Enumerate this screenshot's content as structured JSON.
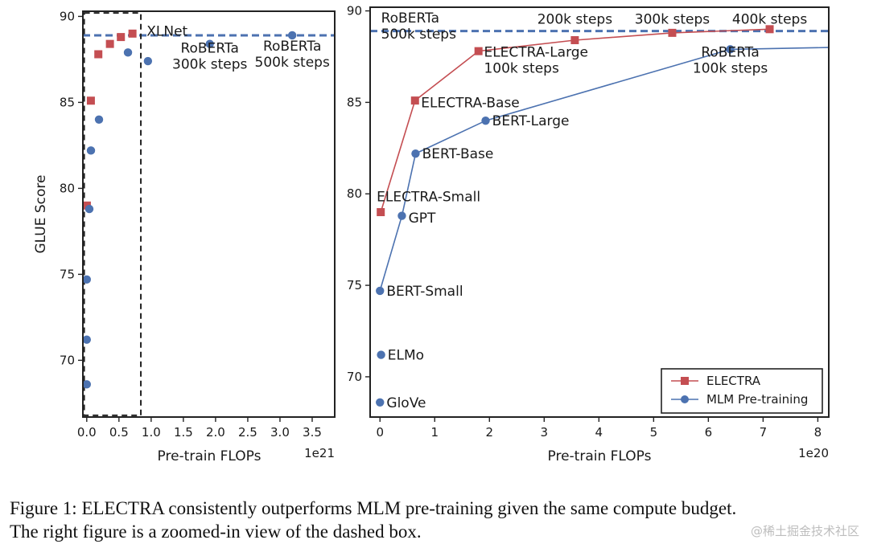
{
  "chart_data": [
    {
      "type": "scatter",
      "xlabel": "Pre-train FLOPs",
      "ylabel": "GLUE Score",
      "x_scale_label": "1e21",
      "xlim": [
        -0.06,
        3.85
      ],
      "ylim": [
        66.7,
        90.3
      ],
      "xticks": [
        "0.0",
        "0.5",
        "1.0",
        "1.5",
        "2.0",
        "2.5",
        "3.0",
        "3.5"
      ],
      "xtick_values": [
        0,
        0.5,
        1,
        1.5,
        2,
        2.5,
        3,
        3.5
      ],
      "yticks": [
        "70",
        "75",
        "80",
        "85",
        "90"
      ],
      "ytick_values": [
        70,
        75,
        80,
        85,
        90
      ],
      "reference_line": {
        "y": 88.9,
        "style": "dashed",
        "color": "#4C72B0"
      },
      "dashed_box": {
        "x": [
          -0.04,
          0.84
        ],
        "y": [
          66.8,
          90.2
        ]
      },
      "series": [
        {
          "marker": "square",
          "color": "#C44E52",
          "points": [
            [
              0.0014,
              79.0
            ],
            [
              0.064,
              85.1
            ],
            [
              0.18,
              87.8
            ],
            [
              0.36,
              88.4
            ],
            [
              0.53,
              88.8
            ],
            [
              0.71,
              89.0
            ]
          ]
        },
        {
          "marker": "circle",
          "color": "#4C72B0",
          "points": [
            [
              0.0,
              68.6
            ],
            [
              0.0,
              71.2
            ],
            [
              0.0,
              74.7
            ],
            [
              0.04,
              78.8
            ],
            [
              0.065,
              82.2
            ],
            [
              0.19,
              84.0
            ],
            [
              0.64,
              87.9
            ],
            [
              0.95,
              87.4
            ],
            [
              1.91,
              88.4
            ],
            [
              3.19,
              88.9
            ]
          ]
        }
      ],
      "annotations": [
        {
          "text": [
            "XLNet"
          ],
          "x": 0.93,
          "y": 88.6
        },
        {
          "text": [
            "RoBERTa",
            "300k steps"
          ],
          "x": 1.91,
          "y": 87.9
        },
        {
          "text": [
            "RoBERTa",
            "500k steps"
          ],
          "x": 3.19,
          "y": 88.0
        }
      ]
    },
    {
      "type": "line",
      "xlabel": "Pre-train FLOPs",
      "x_scale_label": "1e20",
      "xlim": [
        -0.18,
        8.2
      ],
      "ylim": [
        67.8,
        90.2
      ],
      "xticks": [
        "0",
        "1",
        "2",
        "3",
        "4",
        "5",
        "6",
        "7",
        "8"
      ],
      "xtick_values": [
        0,
        1,
        2,
        3,
        4,
        5,
        6,
        7,
        8
      ],
      "yticks": [
        "70",
        "75",
        "80",
        "85",
        "90"
      ],
      "ytick_values": [
        70,
        75,
        80,
        85,
        90
      ],
      "reference_line": {
        "y": 88.9,
        "style": "dashed",
        "color": "#4C72B0"
      },
      "series": [
        {
          "name": "ELECTRA",
          "marker": "square",
          "color": "#C44E52",
          "points": [
            [
              0.014,
              79.0
            ],
            [
              0.64,
              85.1
            ],
            [
              1.8,
              87.8
            ],
            [
              3.56,
              88.4
            ],
            [
              5.34,
              88.8
            ],
            [
              7.12,
              89.0
            ]
          ]
        },
        {
          "name": "MLM Pre-training",
          "marker": "circle",
          "color": "#4C72B0",
          "points": [
            [
              0.0,
              74.7
            ],
            [
              0.4,
              78.8
            ],
            [
              0.65,
              82.2
            ],
            [
              1.93,
              84.0
            ],
            [
              6.4,
              87.9
            ],
            [
              8.2,
              88.0
            ]
          ]
        },
        {
          "marker": "circle",
          "color": "#4C72B0",
          "line": false,
          "points": [
            [
              0.0,
              68.6
            ],
            [
              0.02,
              71.2
            ]
          ]
        }
      ],
      "annotations": [
        {
          "text": [
            "RoBERTa",
            "500k steps"
          ],
          "x": 0.02,
          "y": 89.2
        },
        {
          "text": [
            "200k steps"
          ],
          "x": 3.56,
          "y": 89.3
        },
        {
          "text": [
            "300k steps"
          ],
          "x": 5.34,
          "y": 89.3
        },
        {
          "text": [
            "400k steps"
          ],
          "x": 7.12,
          "y": 89.3
        },
        {
          "text": [
            "ELECTRA-Large",
            "100k steps"
          ],
          "x": 1.9,
          "y": 87.5
        },
        {
          "text": [
            "RoBERTa",
            "100k steps"
          ],
          "x": 6.4,
          "y": 87.5
        },
        {
          "text": [
            "ELECTRA-Base"
          ],
          "x": 0.75,
          "y": 85.0
        },
        {
          "text": [
            "BERT-Large"
          ],
          "x": 2.05,
          "y": 84.0
        },
        {
          "text": [
            "BERT-Base"
          ],
          "x": 0.77,
          "y": 82.2
        },
        {
          "text": [
            "ELECTRA-Small"
          ],
          "x": -0.06,
          "y": 79.6
        },
        {
          "text": [
            "GPT"
          ],
          "x": 0.52,
          "y": 78.7
        },
        {
          "text": [
            "BERT-Small"
          ],
          "x": 0.12,
          "y": 74.7
        },
        {
          "text": [
            "ELMo"
          ],
          "x": 0.14,
          "y": 71.2
        },
        {
          "text": [
            "GloVe"
          ],
          "x": 0.12,
          "y": 68.6
        }
      ],
      "legend": {
        "placement": "lower-right",
        "entries": [
          "ELECTRA",
          "MLM Pre-training"
        ]
      }
    }
  ],
  "caption": {
    "line1": "Figure 1: ELECTRA consistently outperforms MLM pre-training given the same compute budget.",
    "line2": "The right figure is a zoomed-in view of the dashed box."
  },
  "watermark": "@稀土掘金技术社区"
}
